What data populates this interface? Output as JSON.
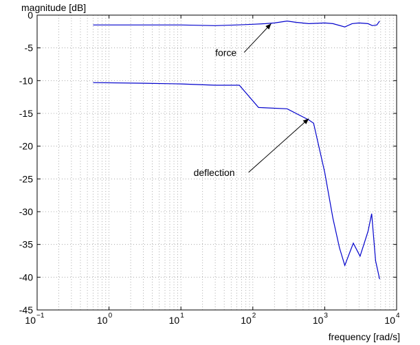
{
  "chart_data": {
    "type": "line",
    "xscale": "log",
    "xlim": [
      0.1,
      10000
    ],
    "ylim": [
      -45,
      0
    ],
    "xlabel": "frequency [rad/s]",
    "ylabel": "magnitude [dB]",
    "grid": true,
    "line_color": "#0000cc",
    "x_ticks": [
      {
        "base": "10",
        "exp": "−1"
      },
      {
        "base": "10",
        "exp": "0"
      },
      {
        "base": "10",
        "exp": "1"
      },
      {
        "base": "10",
        "exp": "2"
      },
      {
        "base": "10",
        "exp": "3"
      },
      {
        "base": "10",
        "exp": "4"
      }
    ],
    "y_ticks": [
      "0",
      "-5",
      "-10",
      "-15",
      "-20",
      "-25",
      "-30",
      "-35",
      "-40",
      "-45"
    ],
    "series": [
      {
        "label": "force",
        "x": [
          0.6,
          2,
          10,
          30,
          60,
          100,
          150,
          200,
          300,
          400,
          600,
          1000,
          1300,
          1900,
          2400,
          3000,
          4000,
          4600,
          5300,
          5800
        ],
        "y": [
          -1.5,
          -1.5,
          -1.5,
          -1.6,
          -1.5,
          -1.4,
          -1.3,
          -1.2,
          -0.9,
          -1.1,
          -1.3,
          -1.2,
          -1.3,
          -1.8,
          -1.3,
          -1.2,
          -1.3,
          -1.6,
          -1.5,
          -0.9
        ]
      },
      {
        "label": "deflection",
        "x": [
          0.6,
          3,
          10,
          30,
          65,
          120,
          300,
          600,
          700,
          1000,
          1300,
          1600,
          1900,
          2500,
          3100,
          3500,
          4000,
          4500,
          5100,
          5800
        ],
        "y": [
          -10.3,
          -10.4,
          -10.5,
          -10.7,
          -10.7,
          -14.1,
          -14.3,
          -16.0,
          -16.5,
          -24,
          -31,
          -35.5,
          -38.2,
          -34.8,
          -36.8,
          -35.0,
          -33.0,
          -30.3,
          -37.5,
          -40.3
        ]
      }
    ],
    "annotations": [
      {
        "text": "force",
        "xy": [
          180,
          -1.3
        ],
        "xytext": [
          30,
          -5.7
        ]
      },
      {
        "text": "deflection",
        "xy": [
          600,
          -15.8
        ],
        "xytext": [
          15,
          -24
        ]
      }
    ]
  }
}
